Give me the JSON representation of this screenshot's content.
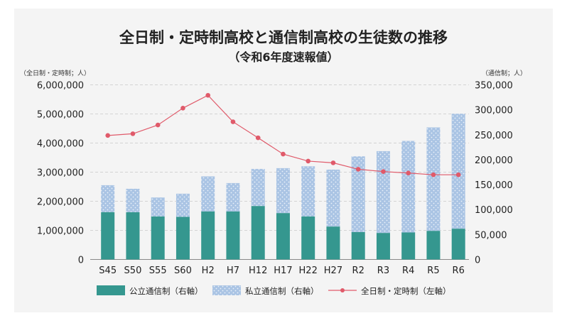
{
  "chart_data": {
    "type": "bar",
    "title": "全日制・定時制高校と通信制高校の生徒数の推移",
    "subtitle": "（令和6年度速報値）",
    "left_axis_label": "（全日制・定時制；人）",
    "right_axis_label": "（通信制；人）",
    "left_ylim": [
      0,
      6000000
    ],
    "right_ylim": [
      0,
      350000
    ],
    "left_ticks": [
      "0",
      "1,000,000",
      "2,000,000",
      "3,000,000",
      "4,000,000",
      "5,000,000",
      "6,000,000"
    ],
    "right_ticks": [
      "0",
      "50,000",
      "100,000",
      "150,000",
      "200,000",
      "250,000",
      "300,000",
      "350,000"
    ],
    "grid": true,
    "legend_position": "bottom",
    "categories": [
      "S45",
      "S50",
      "S55",
      "S60",
      "H2",
      "H7",
      "H12",
      "H17",
      "H22",
      "H27",
      "R2",
      "R3",
      "R4",
      "R5",
      "R6"
    ],
    "series": [
      {
        "name": "公立通信制（右軸）",
        "kind": "stacked-bar",
        "axis": "right",
        "color": "#35978f",
        "values": [
          94800,
          94700,
          86200,
          85400,
          96200,
          96200,
          107100,
          92900,
          86200,
          65900,
          54900,
          53100,
          54100,
          57300,
          61600
        ]
      },
      {
        "name": "私立通信制（右軸）",
        "kind": "stacked-bar",
        "axis": "right",
        "color": "#aac4e4",
        "values": [
          54000,
          47000,
          38000,
          46400,
          70300,
          56900,
          74400,
          90100,
          100600,
          114200,
          151800,
          164000,
          183500,
          207300,
          230500
        ]
      },
      {
        "name": "全日制・定時制（左軸）",
        "kind": "line",
        "axis": "left",
        "color": "#e05a6a",
        "values": [
          4260000,
          4320000,
          4620000,
          5200000,
          5640000,
          4730000,
          4180000,
          3620000,
          3380000,
          3320000,
          3100000,
          3020000,
          2970000,
          2910000,
          2910000
        ]
      }
    ]
  }
}
